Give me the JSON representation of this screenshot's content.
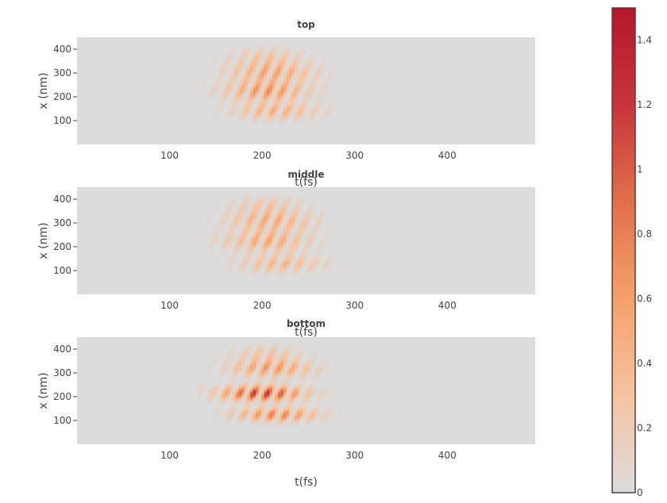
{
  "chart_data": [
    {
      "type": "heatmap",
      "title": "top",
      "xlabel": "t(fs)",
      "ylabel": "x (nm)",
      "xlim": [
        0,
        495
      ],
      "ylim": [
        0,
        450
      ],
      "xticks": [
        100,
        200,
        300,
        400
      ],
      "yticks": [
        100,
        200,
        300,
        400
      ],
      "zlim": [
        0,
        1.5
      ],
      "blobs": [
        {
          "t": 205,
          "x": 225,
          "st": 30,
          "sx": 28,
          "amp": 0.75
        },
        {
          "t": 210,
          "x": 305,
          "st": 30,
          "sx": 30,
          "amp": 0.62
        },
        {
          "t": 215,
          "x": 140,
          "st": 30,
          "sx": 25,
          "amp": 0.5
        },
        {
          "t": 205,
          "x": 370,
          "st": 25,
          "sx": 25,
          "amp": 0.3
        }
      ]
    },
    {
      "type": "heatmap",
      "title": "middle",
      "xlabel": "t(fs)",
      "ylabel": "x (nm)",
      "xlim": [
        0,
        495
      ],
      "ylim": [
        0,
        450
      ],
      "xticks": [
        100,
        200,
        300,
        400
      ],
      "yticks": [
        100,
        200,
        300,
        400
      ],
      "zlim": [
        0,
        1.5
      ],
      "blobs": [
        {
          "t": 205,
          "x": 225,
          "st": 30,
          "sx": 30,
          "amp": 0.58
        },
        {
          "t": 210,
          "x": 310,
          "st": 30,
          "sx": 30,
          "amp": 0.55
        },
        {
          "t": 220,
          "x": 130,
          "st": 30,
          "sx": 25,
          "amp": 0.45
        },
        {
          "t": 205,
          "x": 375,
          "st": 25,
          "sx": 25,
          "amp": 0.28
        }
      ]
    },
    {
      "type": "heatmap",
      "title": "bottom",
      "xlabel": "t(fs)",
      "ylabel": "x (nm)",
      "xlim": [
        0,
        495
      ],
      "ylim": [
        0,
        450
      ],
      "xticks": [
        100,
        200,
        300,
        400
      ],
      "yticks": [
        100,
        200,
        300,
        400
      ],
      "zlim": [
        0,
        1.5
      ],
      "blobs": [
        {
          "t": 200,
          "x": 215,
          "st": 30,
          "sx": 22,
          "amp": 1.3
        },
        {
          "t": 210,
          "x": 320,
          "st": 30,
          "sx": 25,
          "amp": 0.7
        },
        {
          "t": 215,
          "x": 125,
          "st": 30,
          "sx": 20,
          "amp": 0.85
        },
        {
          "t": 205,
          "x": 380,
          "st": 25,
          "sx": 25,
          "amp": 0.3
        }
      ]
    }
  ],
  "colorbar": {
    "min": 0,
    "max": 1.5,
    "ticks": [
      "0",
      "0.2",
      "0.4",
      "0.6",
      "0.8",
      "1",
      "1.2",
      "1.4"
    ],
    "colorscale": [
      "#dcdcdc",
      "#f5c3a1",
      "#f5a06c",
      "#e0704c",
      "#c7353a",
      "#b2182b"
    ]
  }
}
